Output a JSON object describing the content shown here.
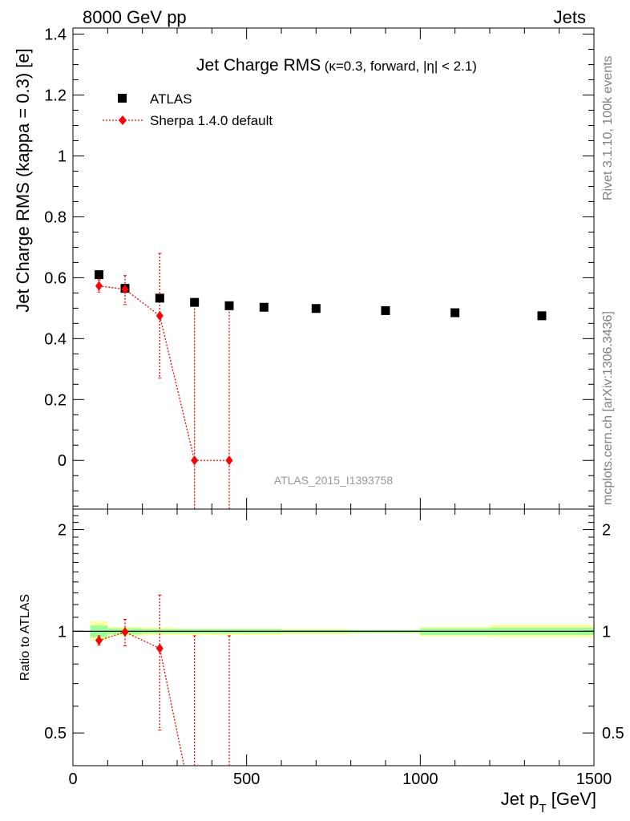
{
  "header": {
    "left": "8000 GeV pp",
    "right": "Jets"
  },
  "side_labels": {
    "rivet": "Rivet 3.1.10,  100k events",
    "mcplots": "mcplots.cern.ch [arXiv:1306.3436]"
  },
  "plot_title": {
    "main": "Jet Charge RMS",
    "sub": "(κ=0.3, forward, |η| < 2.1)"
  },
  "watermark": "ATLAS_2015_I1393758",
  "colors": {
    "data": "#000000",
    "mc": "#ff0000",
    "band_green": "#99ff99",
    "band_yellow": "#ffff99"
  },
  "chart_data": [
    {
      "type": "scatter",
      "ylabel": "Jet Charge RMS (kappa = 0.3) [e]",
      "xlim": [
        0,
        1500
      ],
      "ylim": [
        -0.16,
        1.42
      ],
      "yticks": [
        0,
        0.2,
        0.4,
        0.6,
        0.8,
        1,
        1.2,
        1.4
      ],
      "ytick_labels": [
        "0",
        "0.2",
        "0.4",
        "0.6",
        "0.8",
        "1",
        "1.2",
        "1.4"
      ],
      "legend": {
        "position": "top-left",
        "entries": [
          "ATLAS",
          "Sherpa 1.4.0 default"
        ]
      },
      "series": [
        {
          "name": "ATLAS",
          "marker": "square",
          "x": [
            75,
            150,
            250,
            350,
            450,
            550,
            700,
            900,
            1100,
            1350
          ],
          "y": [
            0.61,
            0.565,
            0.533,
            0.519,
            0.508,
            0.503,
            0.499,
            0.492,
            0.485,
            0.475
          ]
        },
        {
          "name": "Sherpa 1.4.0 default",
          "marker": "diamond",
          "line": "dotted",
          "x": [
            75,
            150,
            250,
            350,
            450
          ],
          "y": [
            0.573,
            0.562,
            0.475,
            0.0,
            0.0
          ],
          "yerr_lo": [
            0.02,
            0.05,
            0.205,
            0.2,
            0.2
          ],
          "yerr_hi": [
            0.02,
            0.045,
            0.205,
            0.51,
            0.51
          ]
        }
      ]
    },
    {
      "type": "scatter",
      "ylabel": "Ratio to ATLAS",
      "xlabel": "Jet p_T [GeV]",
      "xlim": [
        0,
        1500
      ],
      "xticks": [
        0,
        500,
        1000,
        1500
      ],
      "xtick_labels": [
        "0",
        "500",
        "1000",
        "1500"
      ],
      "ylim": [
        0.4,
        2.3
      ],
      "scale": "log",
      "yticks": [
        0.5,
        1,
        2
      ],
      "ytick_labels": [
        "0.5",
        "1",
        "2"
      ],
      "reference_line": 1.0,
      "bands": [
        {
          "x0": 50,
          "x1": 100,
          "green": [
            0.96,
            1.04
          ],
          "yellow": [
            0.94,
            1.07
          ]
        },
        {
          "x0": 100,
          "x1": 200,
          "green": [
            0.98,
            1.02
          ],
          "yellow": [
            0.97,
            1.03
          ]
        },
        {
          "x0": 200,
          "x1": 300,
          "green": [
            0.985,
            1.015
          ],
          "yellow": [
            0.975,
            1.025
          ]
        },
        {
          "x0": 300,
          "x1": 400,
          "green": [
            0.985,
            1.015
          ],
          "yellow": [
            0.975,
            1.02
          ]
        },
        {
          "x0": 400,
          "x1": 500,
          "green": [
            0.985,
            1.015
          ],
          "yellow": [
            0.975,
            1.02
          ]
        },
        {
          "x0": 500,
          "x1": 600,
          "green": [
            0.985,
            1.015
          ],
          "yellow": [
            0.975,
            1.02
          ]
        },
        {
          "x0": 600,
          "x1": 800,
          "green": [
            0.99,
            1.01
          ],
          "yellow": [
            0.98,
            1.015
          ]
        },
        {
          "x0": 800,
          "x1": 1000,
          "green": [
            0.99,
            1.01
          ],
          "yellow": [
            0.985,
            1.01
          ]
        },
        {
          "x0": 1000,
          "x1": 1200,
          "green": [
            0.975,
            1.02
          ],
          "yellow": [
            0.965,
            1.03
          ]
        },
        {
          "x0": 1200,
          "x1": 1500,
          "green": [
            0.975,
            1.025
          ],
          "yellow": [
            0.96,
            1.045
          ]
        }
      ],
      "series": [
        {
          "name": "Sherpa 1.4.0 default",
          "marker": "diamond",
          "line": "dotted",
          "x": [
            75,
            150,
            250,
            350,
            450
          ],
          "y": [
            0.94,
            0.995,
            0.89,
            0.0,
            0.0
          ],
          "yerr_lo": [
            0.03,
            0.09,
            0.38,
            0.0,
            0.0
          ],
          "yerr_hi": [
            0.03,
            0.09,
            0.39,
            0.0,
            0.0
          ]
        }
      ]
    }
  ]
}
